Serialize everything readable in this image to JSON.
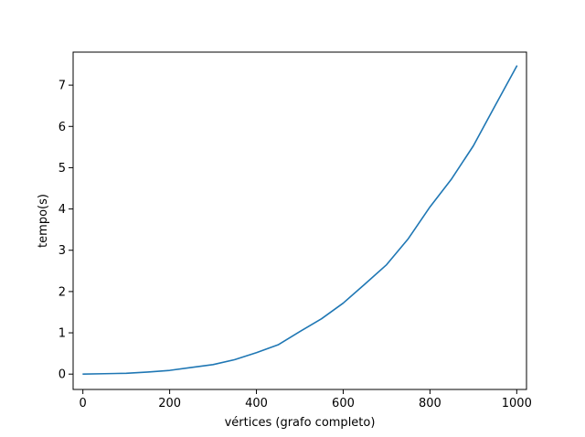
{
  "chart_data": {
    "type": "line",
    "title": "",
    "xlabel": "vértices (grafo completo)",
    "ylabel": "tempo(s)",
    "xlim": [
      -22.5,
      1022.5
    ],
    "ylim": [
      -0.372,
      7.8
    ],
    "grid": false,
    "xticks": [
      0,
      200,
      400,
      600,
      800,
      1000
    ],
    "yticks": [
      0,
      1,
      2,
      3,
      4,
      5,
      6,
      7
    ],
    "series": [
      {
        "color": "#1f77b4",
        "x": [
          1,
          50,
          100,
          150,
          200,
          250,
          300,
          350,
          400,
          450,
          500,
          550,
          600,
          650,
          700,
          750,
          800,
          850,
          900,
          950,
          1000
        ],
        "y": [
          0.0,
          0.01,
          0.02,
          0.05,
          0.09,
          0.16,
          0.23,
          0.35,
          0.52,
          0.71,
          1.03,
          1.34,
          1.72,
          2.18,
          2.65,
          3.28,
          4.05,
          4.73,
          5.53,
          6.5,
          7.46
        ]
      }
    ]
  }
}
